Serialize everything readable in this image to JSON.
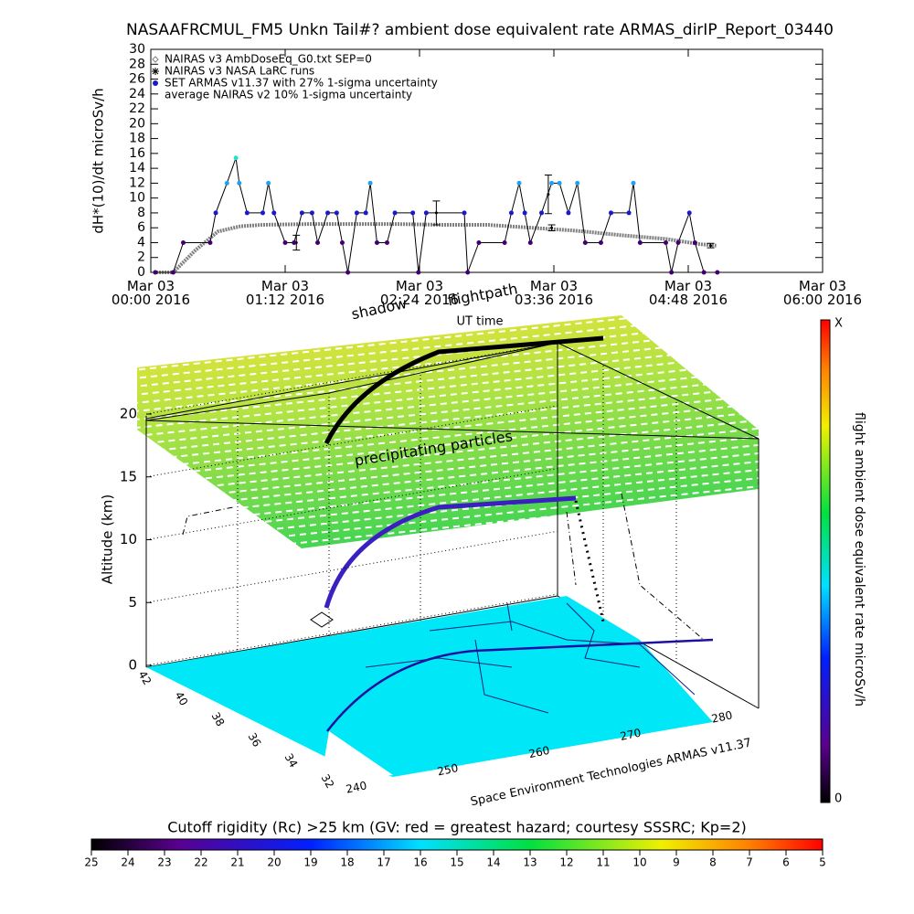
{
  "chart_data": [
    {
      "type": "line",
      "title": "NASAAFRCMUL_FM5 Unkn Tail#? ambient dose equivalent rate ARMAS_dirIP_Report_03440",
      "y_label": "dH*(10)/dt microSv/h",
      "x_label": "UT time",
      "xlim": [
        0,
        6
      ],
      "xticks": [
        {
          "value": 0,
          "label": "Mar 03\n00:00 2016"
        },
        {
          "value": 1.2,
          "label": "Mar 03\n01:12 2016"
        },
        {
          "value": 2.4,
          "label": "Mar 03\n02:24 2016"
        },
        {
          "value": 3.6,
          "label": "Mar 03\n03:36 2016"
        },
        {
          "value": 4.8,
          "label": "Mar 03\n04:48 2016"
        },
        {
          "value": 6,
          "label": "Mar 03\n06:00 2016"
        }
      ],
      "ylim": [
        0,
        30
      ],
      "yticks": [
        0,
        2,
        4,
        6,
        8,
        10,
        12,
        14,
        16,
        18,
        20,
        22,
        24,
        26,
        28,
        30
      ],
      "series": [
        {
          "name": "NAIRAS v3 AmbDoseEq_G0.txt SEP=0",
          "color": "#808080",
          "x": [
            0.05,
            0.2,
            0.4,
            0.6,
            0.8,
            1.0,
            1.4,
            1.8,
            2.2,
            2.6,
            3.0,
            3.4,
            3.8,
            4.2,
            4.6,
            4.9,
            5.05
          ],
          "values": [
            0,
            0,
            3,
            5.5,
            6.2,
            6.4,
            6.5,
            6.5,
            6.5,
            6.4,
            6.4,
            6,
            5.6,
            5,
            4.5,
            3.8,
            3.6
          ]
        },
        {
          "name": "NAIRAS v3 NASA LaRC runs",
          "color": "#000000",
          "x": [
            1.3,
            2.55,
            3.55,
            3.58,
            5.0
          ],
          "values": [
            4,
            8,
            10.5,
            6,
            3.6
          ],
          "errors": [
            1,
            1.6,
            2.6,
            0.4,
            0.3
          ]
        },
        {
          "name": "SET ARMAS v11.37 with 27% 1-sigma uncertainty",
          "color": "#1a1acc",
          "x": [
            0.04,
            0.2,
            0.29,
            0.53,
            0.58,
            0.68,
            0.76,
            0.79,
            0.86,
            1.0,
            1.05,
            1.1,
            1.2,
            1.28,
            1.35,
            1.44,
            1.49,
            1.58,
            1.66,
            1.71,
            1.76,
            1.84,
            1.92,
            1.96,
            2.02,
            2.11,
            2.18,
            2.34,
            2.39,
            2.46,
            2.8,
            2.83,
            2.93,
            3.16,
            3.22,
            3.29,
            3.34,
            3.39,
            3.49,
            3.58,
            3.65,
            3.73,
            3.81,
            3.88,
            4.02,
            4.11,
            4.27,
            4.31,
            4.37,
            4.6,
            4.65,
            4.71,
            4.81,
            4.86,
            4.94,
            5.06
          ],
          "values": [
            0,
            0,
            4,
            4,
            8,
            12,
            15.4,
            12,
            8,
            8,
            12,
            8,
            4,
            4,
            8,
            8,
            4,
            8,
            8,
            4,
            0,
            8,
            8,
            12,
            4,
            4,
            8,
            8,
            0,
            8,
            8,
            0,
            4,
            4,
            8,
            12,
            8,
            4,
            8,
            12,
            12,
            8,
            12,
            4,
            4,
            8,
            8,
            12,
            4,
            4,
            0,
            4,
            8,
            4,
            0,
            0
          ]
        },
        {
          "name": "average NAIRAS v2 10% 1-sigma uncertainty",
          "color": "#000000",
          "x": [],
          "values": []
        }
      ]
    },
    {
      "type": "3d",
      "title": "Cutoff rigidity (Rc) >25 km (GV: red = greatest hazard; courtesy SSSRC; Kp=2)",
      "z_label": "Altitude (km)",
      "zlim": [
        0,
        20
      ],
      "zticks": [
        0,
        5,
        10,
        15,
        20
      ],
      "latlim": [
        42,
        32
      ],
      "lat_ticks": [
        42,
        40,
        38,
        36,
        34,
        32
      ],
      "lonlim": [
        240,
        280
      ],
      "lon_ticks": [
        240,
        250,
        260,
        270,
        280
      ],
      "annotations": [
        "shadow",
        "flightpath",
        "precipitating particles"
      ],
      "credit": "Space Environment Technologies ARMAS v11.37",
      "colorbar_label": "flight ambient dose equivalent rate microSv/h",
      "colorbar_top_label": "X",
      "colorbar_bottom_label": "0",
      "rc_lim": [
        25,
        5
      ],
      "rc_ticks": [
        25,
        24,
        23,
        22,
        21,
        20,
        19,
        18,
        17,
        16,
        15,
        14,
        13,
        12,
        11,
        10,
        9,
        8,
        7,
        6,
        5
      ]
    }
  ]
}
